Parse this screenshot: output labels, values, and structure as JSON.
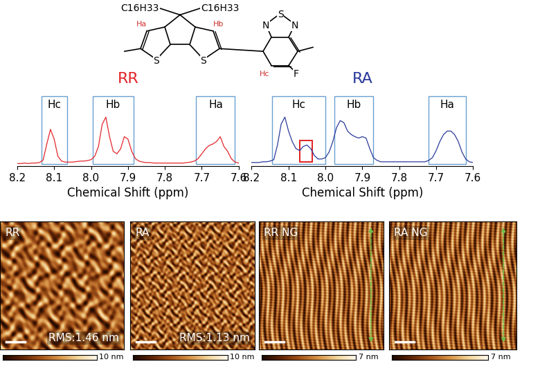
{
  "structure": {
    "substituents": [
      "C16H33",
      "C16H33"
    ],
    "atoms": [
      "S",
      "S",
      "N",
      "S",
      "N",
      "F"
    ],
    "protons": [
      "Ha",
      "Hb",
      "Hc"
    ]
  },
  "chart_data": [
    {
      "type": "line",
      "title": "RR",
      "color": "#e3262b",
      "xlabel": "Chemical Shift (ppm)",
      "tick_labels": "x",
      "xlim": [
        8.2,
        7.6
      ],
      "xticks": [
        8.2,
        8.1,
        8.0,
        7.9,
        7.8,
        7.7,
        7.6
      ],
      "x": [
        8.2,
        8.19,
        8.18,
        8.17,
        8.16,
        8.15,
        8.14,
        8.13,
        8.12,
        8.11,
        8.1,
        8.09,
        8.08,
        8.07,
        8.06,
        8.05,
        8.04,
        8.03,
        8.02,
        8.01,
        8.0,
        7.99,
        7.98,
        7.97,
        7.96,
        7.95,
        7.94,
        7.93,
        7.92,
        7.91,
        7.9,
        7.89,
        7.88,
        7.87,
        7.86,
        7.85,
        7.84,
        7.83,
        7.82,
        7.81,
        7.8,
        7.79,
        7.78,
        7.77,
        7.76,
        7.75,
        7.74,
        7.73,
        7.72,
        7.71,
        7.7,
        7.69,
        7.68,
        7.67,
        7.66,
        7.65,
        7.64,
        7.63,
        7.62,
        7.61,
        7.6
      ],
      "values": [
        0.05,
        0.05,
        0.06,
        0.05,
        0.06,
        0.06,
        0.07,
        0.12,
        0.45,
        0.75,
        0.55,
        0.2,
        0.1,
        0.08,
        0.08,
        0.08,
        0.09,
        0.1,
        0.1,
        0.11,
        0.13,
        0.2,
        0.4,
        0.85,
        1.0,
        0.6,
        0.3,
        0.25,
        0.35,
        0.6,
        0.55,
        0.3,
        0.15,
        0.1,
        0.08,
        0.07,
        0.07,
        0.06,
        0.06,
        0.06,
        0.06,
        0.06,
        0.06,
        0.06,
        0.06,
        0.06,
        0.07,
        0.08,
        0.1,
        0.15,
        0.25,
        0.35,
        0.42,
        0.45,
        0.5,
        0.6,
        0.4,
        0.3,
        0.15,
        0.08,
        0.06
      ],
      "regions": [
        {
          "label": "Hc",
          "range": [
            8.135,
            8.065
          ]
        },
        {
          "label": "Hb",
          "range": [
            7.995,
            7.885
          ]
        },
        {
          "label": "Ha",
          "range": [
            7.715,
            7.61
          ]
        }
      ]
    },
    {
      "type": "line",
      "title": "RA",
      "color": "#2b3a9a",
      "xlabel": "Chemical Shift (ppm)",
      "tick_labels": "x",
      "xlim": [
        8.2,
        7.6
      ],
      "xticks": [
        8.2,
        8.1,
        8.0,
        7.9,
        7.8,
        7.7,
        7.6
      ],
      "x": [
        8.2,
        8.19,
        8.18,
        8.17,
        8.16,
        8.15,
        8.14,
        8.13,
        8.12,
        8.11,
        8.1,
        8.09,
        8.08,
        8.07,
        8.06,
        8.05,
        8.04,
        8.03,
        8.02,
        8.01,
        8.0,
        7.99,
        7.98,
        7.97,
        7.96,
        7.95,
        7.94,
        7.93,
        7.92,
        7.91,
        7.9,
        7.89,
        7.88,
        7.87,
        7.86,
        7.85,
        7.84,
        7.83,
        7.82,
        7.81,
        7.8,
        7.79,
        7.78,
        7.77,
        7.76,
        7.75,
        7.74,
        7.73,
        7.72,
        7.71,
        7.7,
        7.69,
        7.68,
        7.67,
        7.66,
        7.65,
        7.64,
        7.63,
        7.62,
        7.61,
        7.6
      ],
      "values": [
        0.05,
        0.05,
        0.05,
        0.06,
        0.06,
        0.07,
        0.09,
        0.3,
        0.6,
        0.7,
        0.5,
        0.35,
        0.25,
        0.22,
        0.28,
        0.3,
        0.25,
        0.15,
        0.1,
        0.1,
        0.12,
        0.2,
        0.35,
        0.55,
        0.65,
        0.62,
        0.5,
        0.45,
        0.42,
        0.4,
        0.42,
        0.4,
        0.25,
        0.12,
        0.08,
        0.06,
        0.06,
        0.06,
        0.06,
        0.06,
        0.06,
        0.06,
        0.06,
        0.06,
        0.06,
        0.06,
        0.06,
        0.06,
        0.08,
        0.12,
        0.22,
        0.35,
        0.45,
        0.5,
        0.5,
        0.45,
        0.35,
        0.2,
        0.1,
        0.06,
        0.05
      ],
      "regions": [
        {
          "label": "Hc",
          "range": [
            8.145,
            8.0
          ]
        },
        {
          "label": "Hb",
          "range": [
            7.975,
            7.87
          ]
        },
        {
          "label": "Ha",
          "range": [
            7.72,
            7.62
          ]
        }
      ],
      "highlight": [
        8.07,
        8.035
      ]
    }
  ],
  "afm_images": [
    {
      "label": "RR",
      "rms": "RMS:1.46 nm",
      "colorbar": {
        "range": [
          0,
          10
        ],
        "label": "10 nm"
      }
    },
    {
      "label": "RA",
      "rms": "RMS:1.13 nm",
      "colorbar": {
        "range": [
          0,
          10
        ],
        "label": "10 nm"
      }
    },
    {
      "label": "RR NG",
      "colorbar": {
        "range": [
          0,
          7
        ],
        "label": "7 nm"
      }
    },
    {
      "label": "RA NG",
      "colorbar": {
        "range": [
          0,
          7
        ],
        "label": "7 nm"
      }
    }
  ]
}
